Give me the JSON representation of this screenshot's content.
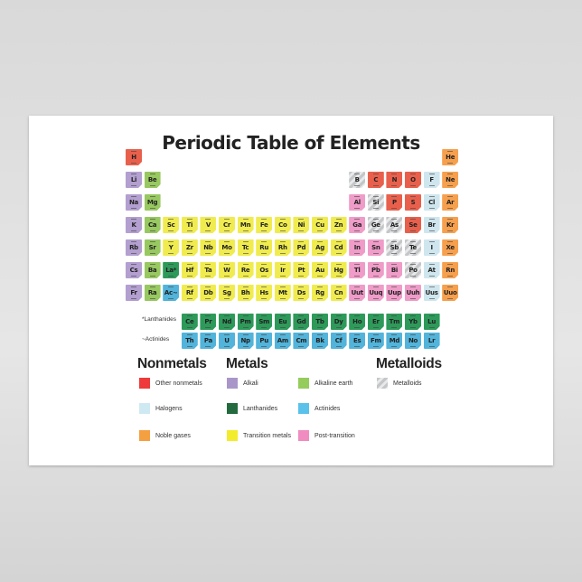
{
  "title": "Periodic Table of Elements",
  "category_colors": {
    "nonmetal": "#e8604c",
    "halogen": "#cfe6ee",
    "noble": "#f6a04e",
    "alkali": "#b39fd0",
    "alkaline": "#98c860",
    "lanthanide": "#2e9a5a",
    "actinide": "#52b4da",
    "transition": "#f0ec50",
    "post": "#ef9cc8",
    "metalloid": "#cfd0d2"
  },
  "elements": [
    [
      "H",
      1,
      1,
      "nonmetal"
    ],
    [
      "He",
      1,
      18,
      "noble"
    ],
    [
      "Li",
      2,
      1,
      "alkali"
    ],
    [
      "Be",
      2,
      2,
      "alkaline"
    ],
    [
      "B",
      2,
      13,
      "metalloid"
    ],
    [
      "C",
      2,
      14,
      "nonmetal"
    ],
    [
      "N",
      2,
      15,
      "nonmetal"
    ],
    [
      "O",
      2,
      16,
      "nonmetal"
    ],
    [
      "F",
      2,
      17,
      "halogen"
    ],
    [
      "Ne",
      2,
      18,
      "noble"
    ],
    [
      "Na",
      3,
      1,
      "alkali"
    ],
    [
      "Mg",
      3,
      2,
      "alkaline"
    ],
    [
      "Al",
      3,
      13,
      "post"
    ],
    [
      "Si",
      3,
      14,
      "metalloid"
    ],
    [
      "P",
      3,
      15,
      "nonmetal"
    ],
    [
      "S",
      3,
      16,
      "nonmetal"
    ],
    [
      "Cl",
      3,
      17,
      "halogen"
    ],
    [
      "Ar",
      3,
      18,
      "noble"
    ],
    [
      "K",
      4,
      1,
      "alkali"
    ],
    [
      "Ca",
      4,
      2,
      "alkaline"
    ],
    [
      "Sc",
      4,
      3,
      "transition"
    ],
    [
      "Ti",
      4,
      4,
      "transition"
    ],
    [
      "V",
      4,
      5,
      "transition"
    ],
    [
      "Cr",
      4,
      6,
      "transition"
    ],
    [
      "Mn",
      4,
      7,
      "transition"
    ],
    [
      "Fe",
      4,
      8,
      "transition"
    ],
    [
      "Co",
      4,
      9,
      "transition"
    ],
    [
      "Ni",
      4,
      10,
      "transition"
    ],
    [
      "Cu",
      4,
      11,
      "transition"
    ],
    [
      "Zn",
      4,
      12,
      "transition"
    ],
    [
      "Ga",
      4,
      13,
      "post"
    ],
    [
      "Ge",
      4,
      14,
      "metalloid"
    ],
    [
      "As",
      4,
      15,
      "metalloid"
    ],
    [
      "Se",
      4,
      16,
      "nonmetal"
    ],
    [
      "Br",
      4,
      17,
      "halogen"
    ],
    [
      "Kr",
      4,
      18,
      "noble"
    ],
    [
      "Rb",
      5,
      1,
      "alkali"
    ],
    [
      "Sr",
      5,
      2,
      "alkaline"
    ],
    [
      "Y",
      5,
      3,
      "transition"
    ],
    [
      "Zr",
      5,
      4,
      "transition"
    ],
    [
      "Nb",
      5,
      5,
      "transition"
    ],
    [
      "Mo",
      5,
      6,
      "transition"
    ],
    [
      "Tc",
      5,
      7,
      "transition"
    ],
    [
      "Ru",
      5,
      8,
      "transition"
    ],
    [
      "Rh",
      5,
      9,
      "transition"
    ],
    [
      "Pd",
      5,
      10,
      "transition"
    ],
    [
      "Ag",
      5,
      11,
      "transition"
    ],
    [
      "Cd",
      5,
      12,
      "transition"
    ],
    [
      "In",
      5,
      13,
      "post"
    ],
    [
      "Sn",
      5,
      14,
      "post"
    ],
    [
      "Sb",
      5,
      15,
      "metalloid"
    ],
    [
      "Te",
      5,
      16,
      "metalloid"
    ],
    [
      "I",
      5,
      17,
      "halogen"
    ],
    [
      "Xe",
      5,
      18,
      "noble"
    ],
    [
      "Cs",
      6,
      1,
      "alkali"
    ],
    [
      "Ba",
      6,
      2,
      "alkaline"
    ],
    [
      "La*",
      6,
      3,
      "lanthanide"
    ],
    [
      "Hf",
      6,
      4,
      "transition"
    ],
    [
      "Ta",
      6,
      5,
      "transition"
    ],
    [
      "W",
      6,
      6,
      "transition"
    ],
    [
      "Re",
      6,
      7,
      "transition"
    ],
    [
      "Os",
      6,
      8,
      "transition"
    ],
    [
      "Ir",
      6,
      9,
      "transition"
    ],
    [
      "Pt",
      6,
      10,
      "transition"
    ],
    [
      "Au",
      6,
      11,
      "transition"
    ],
    [
      "Hg",
      6,
      12,
      "transition"
    ],
    [
      "Tl",
      6,
      13,
      "post"
    ],
    [
      "Pb",
      6,
      14,
      "post"
    ],
    [
      "Bi",
      6,
      15,
      "post"
    ],
    [
      "Po",
      6,
      16,
      "metalloid"
    ],
    [
      "At",
      6,
      17,
      "halogen"
    ],
    [
      "Rn",
      6,
      18,
      "noble"
    ],
    [
      "Fr",
      7,
      1,
      "alkali"
    ],
    [
      "Ra",
      7,
      2,
      "alkaline"
    ],
    [
      "Ac~",
      7,
      3,
      "actinide"
    ],
    [
      "Rf",
      7,
      4,
      "transition"
    ],
    [
      "Db",
      7,
      5,
      "transition"
    ],
    [
      "Sg",
      7,
      6,
      "transition"
    ],
    [
      "Bh",
      7,
      7,
      "transition"
    ],
    [
      "Hs",
      7,
      8,
      "transition"
    ],
    [
      "Mt",
      7,
      9,
      "transition"
    ],
    [
      "Ds",
      7,
      10,
      "transition"
    ],
    [
      "Rg",
      7,
      11,
      "transition"
    ],
    [
      "Cn",
      7,
      12,
      "transition"
    ],
    [
      "Uut",
      7,
      13,
      "post"
    ],
    [
      "Uuq",
      7,
      14,
      "post"
    ],
    [
      "Uup",
      7,
      15,
      "post"
    ],
    [
      "Uuh",
      7,
      16,
      "post"
    ],
    [
      "Uus",
      7,
      17,
      "halogen"
    ],
    [
      "Uuo",
      7,
      18,
      "noble"
    ]
  ],
  "lanthanides": {
    "label": "*Lanthanides",
    "symbols": [
      "Ce",
      "Pr",
      "Nd",
      "Pm",
      "Sm",
      "Eu",
      "Gd",
      "Tb",
      "Dy",
      "Ho",
      "Er",
      "Tm",
      "Yb",
      "Lu"
    ]
  },
  "actinides": {
    "label": "~Actinides",
    "symbols": [
      "Th",
      "Pa",
      "U",
      "Np",
      "Pu",
      "Am",
      "Cm",
      "Bk",
      "Cf",
      "Es",
      "Fm",
      "Md",
      "No",
      "Lr"
    ]
  },
  "legend": {
    "nonmetals_heading": "Nonmetals",
    "metals_heading": "Metals",
    "metalloids_heading": "Metalloids",
    "items": [
      {
        "label": "Other nonmetals",
        "category": "nonmetal",
        "color": "#ee3a3a"
      },
      {
        "label": "Halogens",
        "category": "halogen",
        "color": "#cfe9f3"
      },
      {
        "label": "Noble gases",
        "category": "noble",
        "color": "#f5a040"
      },
      {
        "label": "Alkali",
        "category": "alkali",
        "color": "#a996c9"
      },
      {
        "label": "Lanthanides",
        "category": "lanthanide",
        "color": "#236b3e"
      },
      {
        "label": "Transition metals",
        "category": "transition",
        "color": "#f2ec2c"
      },
      {
        "label": "Alkaline earth",
        "category": "alkaline",
        "color": "#95cc5c"
      },
      {
        "label": "Actinides",
        "category": "actinide",
        "color": "#5ac2ea"
      },
      {
        "label": "Post-transition",
        "category": "post",
        "color": "#f08cc0"
      },
      {
        "label": "Metalloids",
        "category": "metalloid",
        "color": "#cfd0d2"
      }
    ]
  }
}
